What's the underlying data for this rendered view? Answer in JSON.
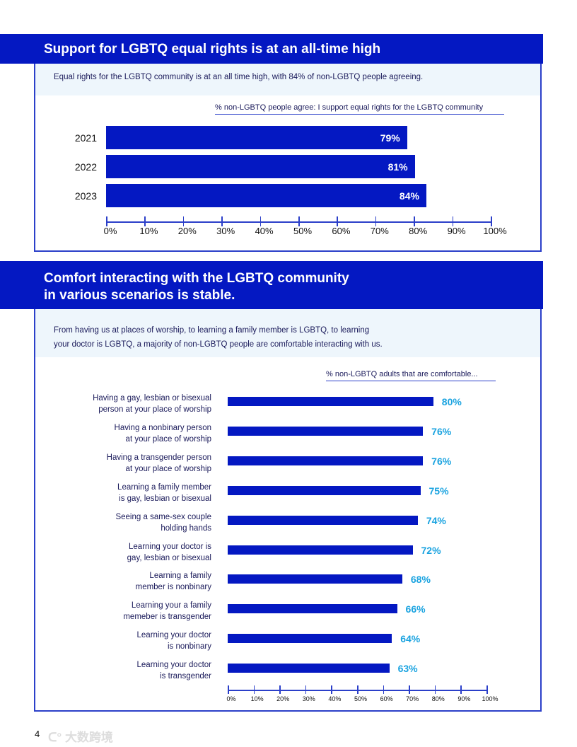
{
  "section1": {
    "title": "Support for LGBTQ equal rights is at an all-time high",
    "subtitle": "Equal rights for the LGBTQ community is at an all time high, with 84% of non-LGBTQ people agreeing."
  },
  "section2": {
    "title_line1": "Comfort interacting with the LGBTQ community",
    "title_line2": "in various scenarios is stable.",
    "subtitle_line1": "From having us at places of worship, to learning a family member is LGBTQ, to learning",
    "subtitle_line2": "your doctor is LGBTQ, a majority of non-LGBTQ people are comfortable interacting with us."
  },
  "page_number": "4",
  "watermark": "大数跨境",
  "colors": {
    "bar": "#0418c2",
    "value_label": "#1aa3e0"
  },
  "chart_data": [
    {
      "type": "bar",
      "orientation": "horizontal",
      "title": "% non-LGBTQ people agree: I support equal rights for the LGBTQ community",
      "categories": [
        "2021",
        "2022",
        "2023"
      ],
      "values": [
        79,
        81,
        84
      ],
      "value_labels": [
        "79%",
        "81%",
        "84%"
      ],
      "xlim": [
        0,
        100
      ],
      "ticks": [
        "0%",
        "10%",
        "20%",
        "30%",
        "40%",
        "50%",
        "60%",
        "70%",
        "80%",
        "90%",
        "100%"
      ]
    },
    {
      "type": "bar",
      "orientation": "horizontal",
      "title": "% non-LGBTQ adults that are comfortable...",
      "categories": [
        [
          "Having a gay, lesbian or bisexual",
          "person at your place of worship"
        ],
        [
          "Having a nonbinary person",
          "at your place of worship"
        ],
        [
          "Having a transgender person",
          "at your place of worship"
        ],
        [
          "Learning a family member",
          "is gay, lesbian or bisexual"
        ],
        [
          "Seeing a same-sex couple",
          "holding hands"
        ],
        [
          "Learning your doctor is",
          "gay, lesbian or bisexual"
        ],
        [
          "Learning a family",
          "member is nonbinary"
        ],
        [
          "Learning your a family",
          "memeber is transgender"
        ],
        [
          "Learning your doctor",
          "is nonbinary"
        ],
        [
          "Learning your doctor",
          "is transgender"
        ]
      ],
      "values": [
        80,
        76,
        76,
        75,
        74,
        72,
        68,
        66,
        64,
        63
      ],
      "value_labels": [
        "80%",
        "76%",
        "76%",
        "75%",
        "74%",
        "72%",
        "68%",
        "66%",
        "64%",
        "63%"
      ],
      "xlim": [
        0,
        100
      ],
      "ticks": [
        "0%",
        "10%",
        "20%",
        "30%",
        "40%",
        "50%",
        "60%",
        "70%",
        "80%",
        "90%",
        "100%"
      ]
    }
  ]
}
